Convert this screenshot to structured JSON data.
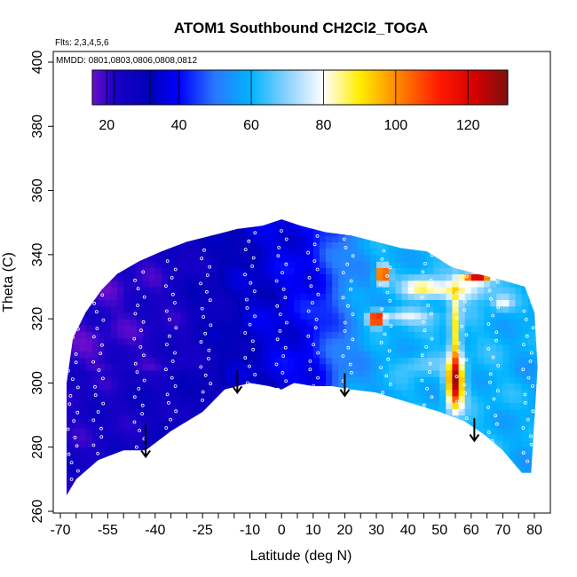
{
  "chart_data": {
    "type": "heatmap",
    "title": "ATOM1 Southbound CH2Cl2_TOGA",
    "flights_label": "Flts: 2,3,4,5,6",
    "dates_label": "MMDD: 0801,0803,0806,0808,0812",
    "xlabel": "Latitude (deg N)",
    "ylabel": "Theta (C)",
    "xlim": [
      -70,
      82
    ],
    "ylim": [
      260,
      402
    ],
    "x_ticks": [
      -70,
      -55,
      -40,
      -25,
      -10,
      0,
      10,
      20,
      30,
      40,
      50,
      60,
      70,
      80
    ],
    "x_tick_labels": [
      "-70",
      "-55",
      "-40",
      "-25",
      "-10",
      "0",
      "10",
      "20",
      "30",
      "40",
      "50",
      "60",
      "70",
      "80"
    ],
    "x_minor_ticks": [
      -65,
      -60,
      -50,
      -45,
      -35,
      -30,
      -20,
      -15,
      -5,
      5,
      15,
      25,
      35,
      45,
      55,
      65,
      75
    ],
    "y_ticks": [
      260,
      280,
      300,
      320,
      340,
      360,
      380,
      400
    ],
    "y_tick_labels": [
      "260",
      "280",
      "300",
      "320",
      "340",
      "360",
      "380",
      "400"
    ],
    "colorbar": {
      "range": [
        16,
        131
      ],
      "ticks": [
        20,
        40,
        60,
        80,
        100,
        120
      ],
      "tick_labels": [
        "20",
        "40",
        "60",
        "80",
        "100",
        "120"
      ],
      "stops": [
        {
          "v": 16,
          "c": "#6a0dcc"
        },
        {
          "v": 22,
          "c": "#1a00c8"
        },
        {
          "v": 32,
          "c": "#0000b8"
        },
        {
          "v": 40,
          "c": "#0000ff"
        },
        {
          "v": 50,
          "c": "#2a78ff"
        },
        {
          "v": 60,
          "c": "#00b4ff"
        },
        {
          "v": 70,
          "c": "#8cd2ff"
        },
        {
          "v": 80,
          "c": "#ffffff"
        },
        {
          "v": 90,
          "c": "#ffee00"
        },
        {
          "v": 100,
          "c": "#ff8c00"
        },
        {
          "v": 112,
          "c": "#ff1a00"
        },
        {
          "v": 122,
          "c": "#d40000"
        },
        {
          "v": 131,
          "c": "#7d1010"
        }
      ]
    },
    "field": {
      "lower_boundary": [
        {
          "lat": -68,
          "theta": 265
        },
        {
          "lat": -65,
          "theta": 270
        },
        {
          "lat": -58,
          "theta": 276
        },
        {
          "lat": -50,
          "theta": 279
        },
        {
          "lat": -43,
          "theta": 279
        },
        {
          "lat": -35,
          "theta": 285
        },
        {
          "lat": -25,
          "theta": 291
        },
        {
          "lat": -18,
          "theta": 298
        },
        {
          "lat": -10,
          "theta": 300
        },
        {
          "lat": -4,
          "theta": 299
        },
        {
          "lat": 0,
          "theta": 298
        },
        {
          "lat": 4,
          "theta": 300
        },
        {
          "lat": 10,
          "theta": 299
        },
        {
          "lat": 16,
          "theta": 299
        },
        {
          "lat": 22,
          "theta": 298
        },
        {
          "lat": 30,
          "theta": 297
        },
        {
          "lat": 40,
          "theta": 294
        },
        {
          "lat": 50,
          "theta": 291
        },
        {
          "lat": 58,
          "theta": 288
        },
        {
          "lat": 64,
          "theta": 284
        },
        {
          "lat": 70,
          "theta": 279
        },
        {
          "lat": 76,
          "theta": 272
        },
        {
          "lat": 78,
          "theta": 272
        }
      ],
      "upper_boundary": [
        {
          "lat": -68,
          "theta": 300
        },
        {
          "lat": -66,
          "theta": 314
        },
        {
          "lat": -62,
          "theta": 322
        },
        {
          "lat": -57,
          "theta": 329
        },
        {
          "lat": -52,
          "theta": 334
        },
        {
          "lat": -45,
          "theta": 338
        },
        {
          "lat": -38,
          "theta": 341
        },
        {
          "lat": -30,
          "theta": 344
        },
        {
          "lat": -22,
          "theta": 346
        },
        {
          "lat": -14,
          "theta": 348
        },
        {
          "lat": -6,
          "theta": 349
        },
        {
          "lat": 0,
          "theta": 351
        },
        {
          "lat": 6,
          "theta": 349
        },
        {
          "lat": 14,
          "theta": 347
        },
        {
          "lat": 22,
          "theta": 346
        },
        {
          "lat": 30,
          "theta": 344
        },
        {
          "lat": 38,
          "theta": 342
        },
        {
          "lat": 46,
          "theta": 341
        },
        {
          "lat": 54,
          "theta": 336
        },
        {
          "lat": 62,
          "theta": 334
        },
        {
          "lat": 70,
          "theta": 332
        },
        {
          "lat": 77,
          "theta": 330
        },
        {
          "lat": 80,
          "theta": 322
        },
        {
          "lat": 81,
          "theta": 305
        },
        {
          "lat": 79,
          "theta": 272
        }
      ],
      "background": [
        {
          "lat": -68,
          "v": 21
        },
        {
          "lat": -55,
          "v": 22
        },
        {
          "lat": -40,
          "v": 24
        },
        {
          "lat": -25,
          "v": 28
        },
        {
          "lat": -10,
          "v": 34
        },
        {
          "lat": 0,
          "v": 37
        },
        {
          "lat": 10,
          "v": 40
        },
        {
          "lat": 16,
          "v": 47
        },
        {
          "lat": 22,
          "v": 54
        },
        {
          "lat": 30,
          "v": 58
        },
        {
          "lat": 40,
          "v": 60
        },
        {
          "lat": 55,
          "v": 61
        },
        {
          "lat": 70,
          "v": 60
        },
        {
          "lat": 80,
          "v": 58
        }
      ],
      "blobs": [
        {
          "lat": 55,
          "theta": 300,
          "slat": 2.5,
          "sth": 8,
          "amp": 60
        },
        {
          "lat": 55,
          "theta": 316,
          "slat": 1.6,
          "sth": 12,
          "amp": 30
        },
        {
          "lat": 62,
          "theta": 333,
          "slat": 4.5,
          "sth": 1.6,
          "amp": 62
        },
        {
          "lat": 55,
          "theta": 329,
          "slat": 12,
          "sth": 3,
          "amp": 22
        },
        {
          "lat": 32,
          "theta": 334,
          "slat": 1.8,
          "sth": 2.5,
          "amp": 70
        },
        {
          "lat": 30,
          "theta": 320,
          "slat": 2.2,
          "sth": 2,
          "amp": 70
        },
        {
          "lat": 38,
          "theta": 321,
          "slat": 9,
          "sth": 2.2,
          "amp": 18
        },
        {
          "lat": 44,
          "theta": 330,
          "slat": 5,
          "sth": 3,
          "amp": 20
        },
        {
          "lat": 70,
          "theta": 325,
          "slat": 3,
          "sth": 2,
          "amp": 18
        },
        {
          "lat": 44,
          "theta": 306,
          "slat": 6,
          "sth": 3,
          "amp": 8
        }
      ],
      "flight_tracks": [
        {
          "lat": -66,
          "theta_min": 270,
          "theta_max": 318
        },
        {
          "lat": -58,
          "theta_min": 278,
          "theta_max": 328
        },
        {
          "lat": -45,
          "theta_min": 280,
          "theta_max": 335
        },
        {
          "lat": -35,
          "theta_min": 286,
          "theta_max": 340
        },
        {
          "lat": -24,
          "theta_min": 292,
          "theta_max": 344
        },
        {
          "lat": -10,
          "theta_min": 300,
          "theta_max": 348
        },
        {
          "lat": 0,
          "theta_min": 298,
          "theta_max": 350
        },
        {
          "lat": 10,
          "theta_min": 299,
          "theta_max": 346
        },
        {
          "lat": 21,
          "theta_min": 298,
          "theta_max": 345
        },
        {
          "lat": 33,
          "theta_min": 297,
          "theta_max": 342
        },
        {
          "lat": 46,
          "theta_min": 293,
          "theta_max": 340
        },
        {
          "lat": 57,
          "theta_min": 289,
          "theta_max": 335
        },
        {
          "lat": 67,
          "theta_min": 282,
          "theta_max": 332
        },
        {
          "lat": 78,
          "theta_min": 273,
          "theta_max": 330
        }
      ]
    },
    "arrows": [
      {
        "lat": -43,
        "theta_top": 287,
        "theta_bottom": 277
      },
      {
        "lat": -14,
        "theta_top": 304,
        "theta_bottom": 297
      },
      {
        "lat": 20,
        "theta_top": 303,
        "theta_bottom": 296
      },
      {
        "lat": 61,
        "theta_top": 289,
        "theta_bottom": 282
      }
    ]
  }
}
